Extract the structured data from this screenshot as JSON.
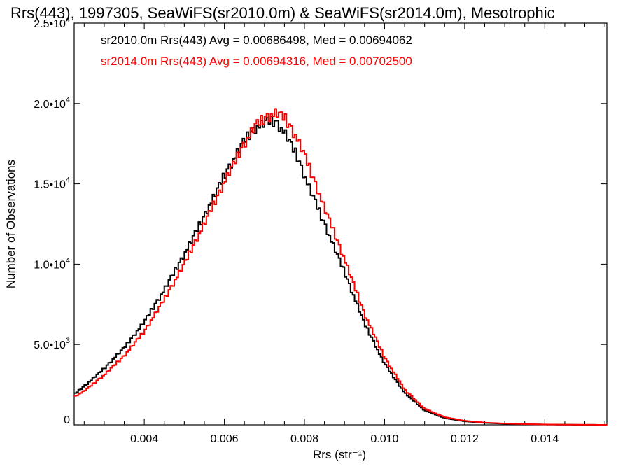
{
  "chart_data": {
    "type": "line",
    "title": "Rrs(443), 1997305, SeaWiFS(sr2010.0m) & SeaWiFS(sr2014.0m), Mesotrophic",
    "xlabel": "Rrs (str⁻¹)",
    "ylabel": "Number of Observations",
    "xlim": [
      0.00225,
      0.01555
    ],
    "ylim": [
      0,
      25000
    ],
    "x_ticks": [
      0.004,
      0.006,
      0.008,
      0.01,
      0.012,
      0.014
    ],
    "x_tick_labels": [
      "0.004",
      "0.006",
      "0.008",
      "0.010",
      "0.012",
      "0.014"
    ],
    "y_ticks": [
      0,
      5000,
      10000,
      15000,
      20000,
      25000
    ],
    "y_tick_labels": [
      {
        "mantissa": "0",
        "exponent": ""
      },
      {
        "mantissa": "5.0•1",
        "exponent": "3",
        "base": "0"
      },
      {
        "mantissa": "1.0•1",
        "exponent": "4",
        "base": "0"
      },
      {
        "mantissa": "1.5•1",
        "exponent": "4",
        "base": "0"
      },
      {
        "mantissa": "2.0•1",
        "exponent": "4",
        "base": "0"
      },
      {
        "mantissa": "2.5•1",
        "exponent": "4",
        "base": "0"
      }
    ],
    "legend_placement": "top-left",
    "style": "step",
    "series": [
      {
        "name": "sr2010.0m Rrs(443) Avg = 0.00686498, Med = 0.00694062",
        "color": "#000000",
        "x": [
          0.00225,
          0.0025,
          0.003,
          0.0035,
          0.004,
          0.0045,
          0.005,
          0.0055,
          0.006,
          0.0065,
          0.0068,
          0.0071,
          0.0073,
          0.0075,
          0.0078,
          0.008,
          0.0085,
          0.009,
          0.0095,
          0.01,
          0.0105,
          0.011,
          0.0115,
          0.012,
          0.0125,
          0.013,
          0.0135,
          0.014,
          0.0145,
          0.015,
          0.01555
        ],
        "y": [
          1900,
          2400,
          3500,
          4800,
          6400,
          8400,
          10600,
          13000,
          15500,
          17700,
          18500,
          18900,
          18800,
          18200,
          16800,
          15500,
          12500,
          9500,
          6300,
          3800,
          2000,
          900,
          420,
          220,
          120,
          70,
          40,
          20,
          10,
          5,
          0
        ]
      },
      {
        "name": "sr2014.0m Rrs(443) Avg = 0.00694316, Med = 0.00702500",
        "color": "#ff0000",
        "x": [
          0.00225,
          0.0025,
          0.003,
          0.0035,
          0.004,
          0.0045,
          0.005,
          0.0055,
          0.006,
          0.0065,
          0.0068,
          0.0071,
          0.0073,
          0.0075,
          0.0078,
          0.008,
          0.0085,
          0.009,
          0.0095,
          0.01,
          0.0105,
          0.011,
          0.0115,
          0.012,
          0.0125,
          0.013,
          0.0135,
          0.014,
          0.0145,
          0.015,
          0.01555
        ],
        "y": [
          1750,
          2100,
          3100,
          4300,
          5800,
          7800,
          10000,
          12500,
          15100,
          17500,
          18700,
          19200,
          19400,
          19100,
          17900,
          16800,
          13500,
          10300,
          6900,
          4200,
          2200,
          1000,
          480,
          250,
          140,
          80,
          45,
          25,
          12,
          6,
          0
        ]
      }
    ]
  }
}
